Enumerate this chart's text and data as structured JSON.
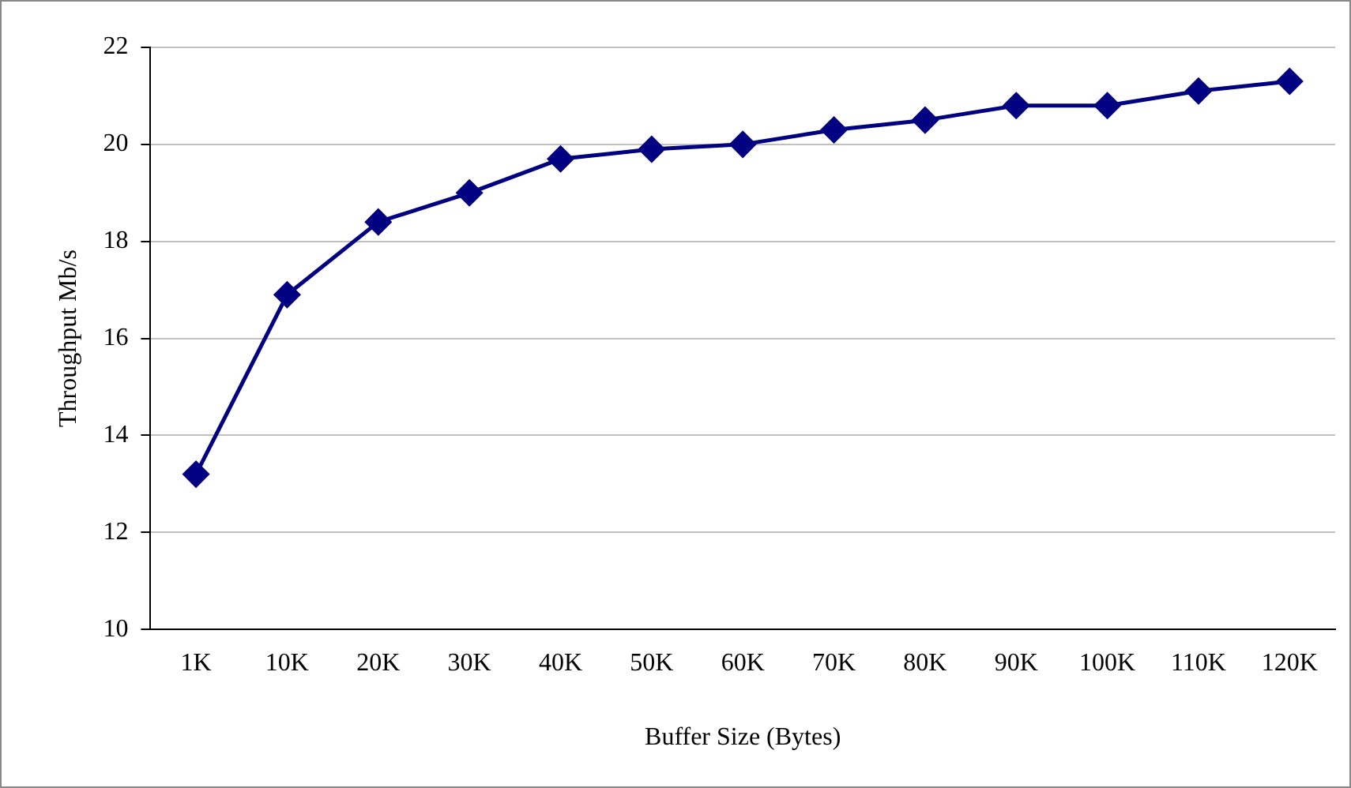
{
  "chart_data": {
    "type": "line",
    "xlabel": "Buffer Size (Bytes)",
    "ylabel": "Throughput Mb/s",
    "categories": [
      "1K",
      "10K",
      "20K",
      "30K",
      "40K",
      "50K",
      "60K",
      "70K",
      "80K",
      "90K",
      "100K",
      "110K",
      "120K"
    ],
    "series": [
      {
        "color": "#000080",
        "values": [
          13.2,
          16.9,
          18.4,
          19.0,
          19.7,
          19.9,
          20.0,
          20.3,
          20.5,
          20.8,
          20.8,
          21.1,
          21.3
        ]
      }
    ],
    "ylim": [
      10,
      22
    ],
    "yticks": [
      10,
      12,
      14,
      16,
      18,
      20,
      22
    ],
    "grid": "y",
    "legend": false,
    "marker": "diamond",
    "line_style": "solid"
  }
}
